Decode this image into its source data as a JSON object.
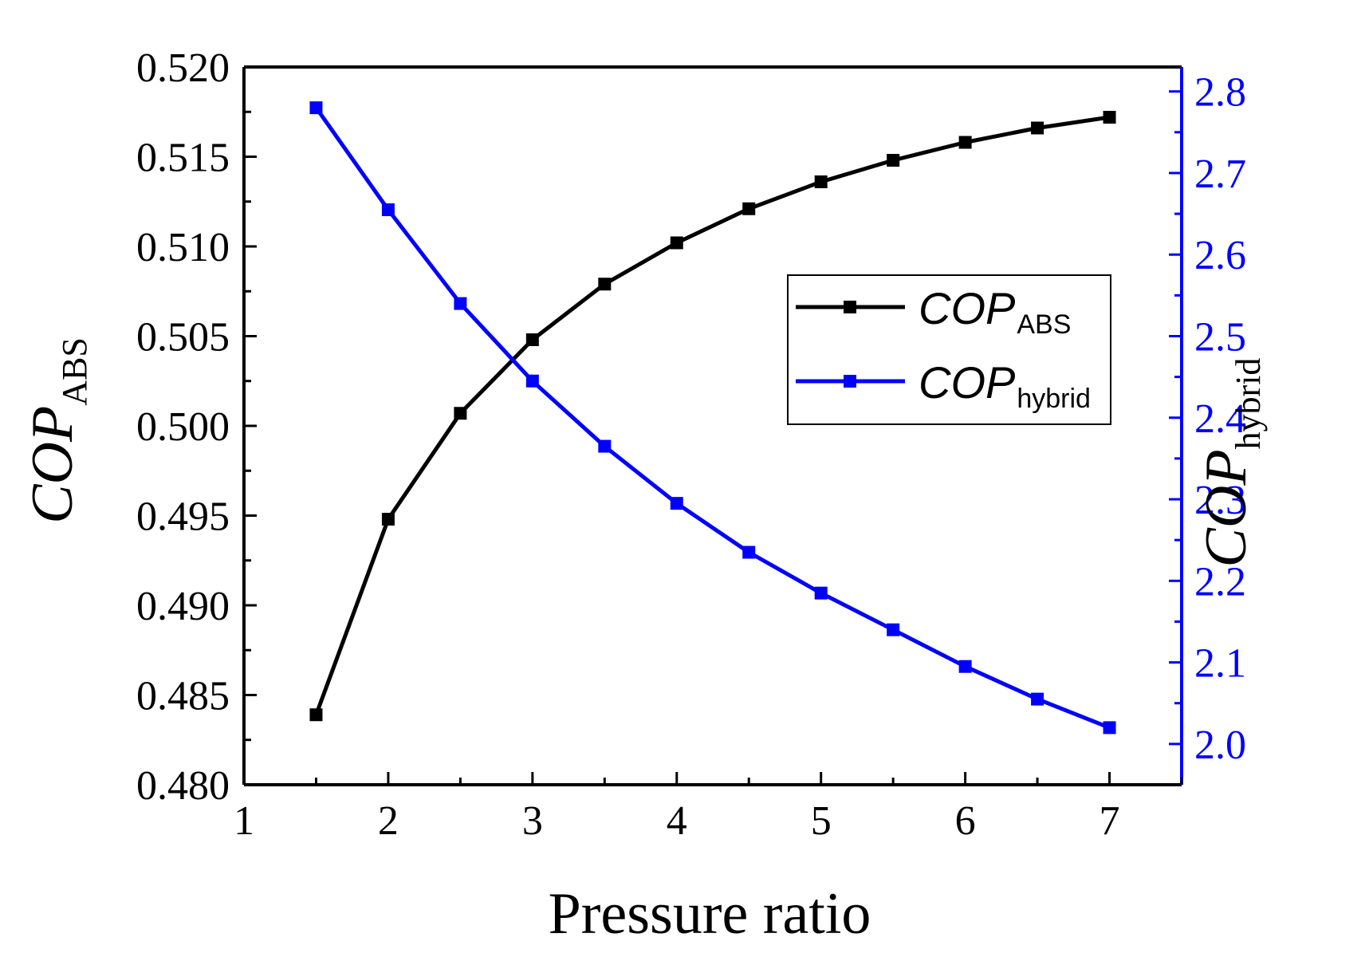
{
  "chart_data": {
    "type": "line",
    "title": "",
    "xlabel": "Pressure ratio",
    "x": [
      1.5,
      2,
      2.5,
      3,
      3.5,
      4,
      4.5,
      5,
      5.5,
      6,
      6.5,
      7
    ],
    "xlim": [
      1,
      7.5
    ],
    "xticks": [
      "1",
      "2",
      "3",
      "4",
      "5",
      "6",
      "7"
    ],
    "left_axis": {
      "label_main": "COP",
      "label_sub": "ABS",
      "lim": [
        0.48,
        0.52
      ],
      "ticks": [
        "0.480",
        "0.485",
        "0.490",
        "0.495",
        "0.500",
        "0.505",
        "0.510",
        "0.515",
        "0.520"
      ]
    },
    "right_axis": {
      "label_main": "COP",
      "label_sub": "hybrid",
      "lim": [
        1.95,
        2.83
      ],
      "ticks": [
        "2.0",
        "2.1",
        "2.2",
        "2.3",
        "2.4",
        "2.5",
        "2.6",
        "2.7",
        "2.8"
      ],
      "color": "#0000ff"
    },
    "series": [
      {
        "name": "COP_ABS",
        "label_main": "COP",
        "label_sub": "ABS",
        "axis": "left",
        "color": "#000000",
        "marker": "square",
        "values": [
          0.4839,
          0.4948,
          0.5007,
          0.5048,
          0.5079,
          0.5102,
          0.5121,
          0.5136,
          0.5148,
          0.5158,
          0.5166,
          0.5172
        ]
      },
      {
        "name": "COP_hybrid",
        "label_main": "COP",
        "label_sub": "hybrid",
        "axis": "right",
        "color": "#0000ff",
        "marker": "square",
        "values": [
          2.78,
          2.655,
          2.54,
          2.445,
          2.365,
          2.295,
          2.235,
          2.185,
          2.14,
          2.095,
          2.055,
          2.02
        ]
      }
    ],
    "legend_position": "center-right",
    "grid": false
  }
}
